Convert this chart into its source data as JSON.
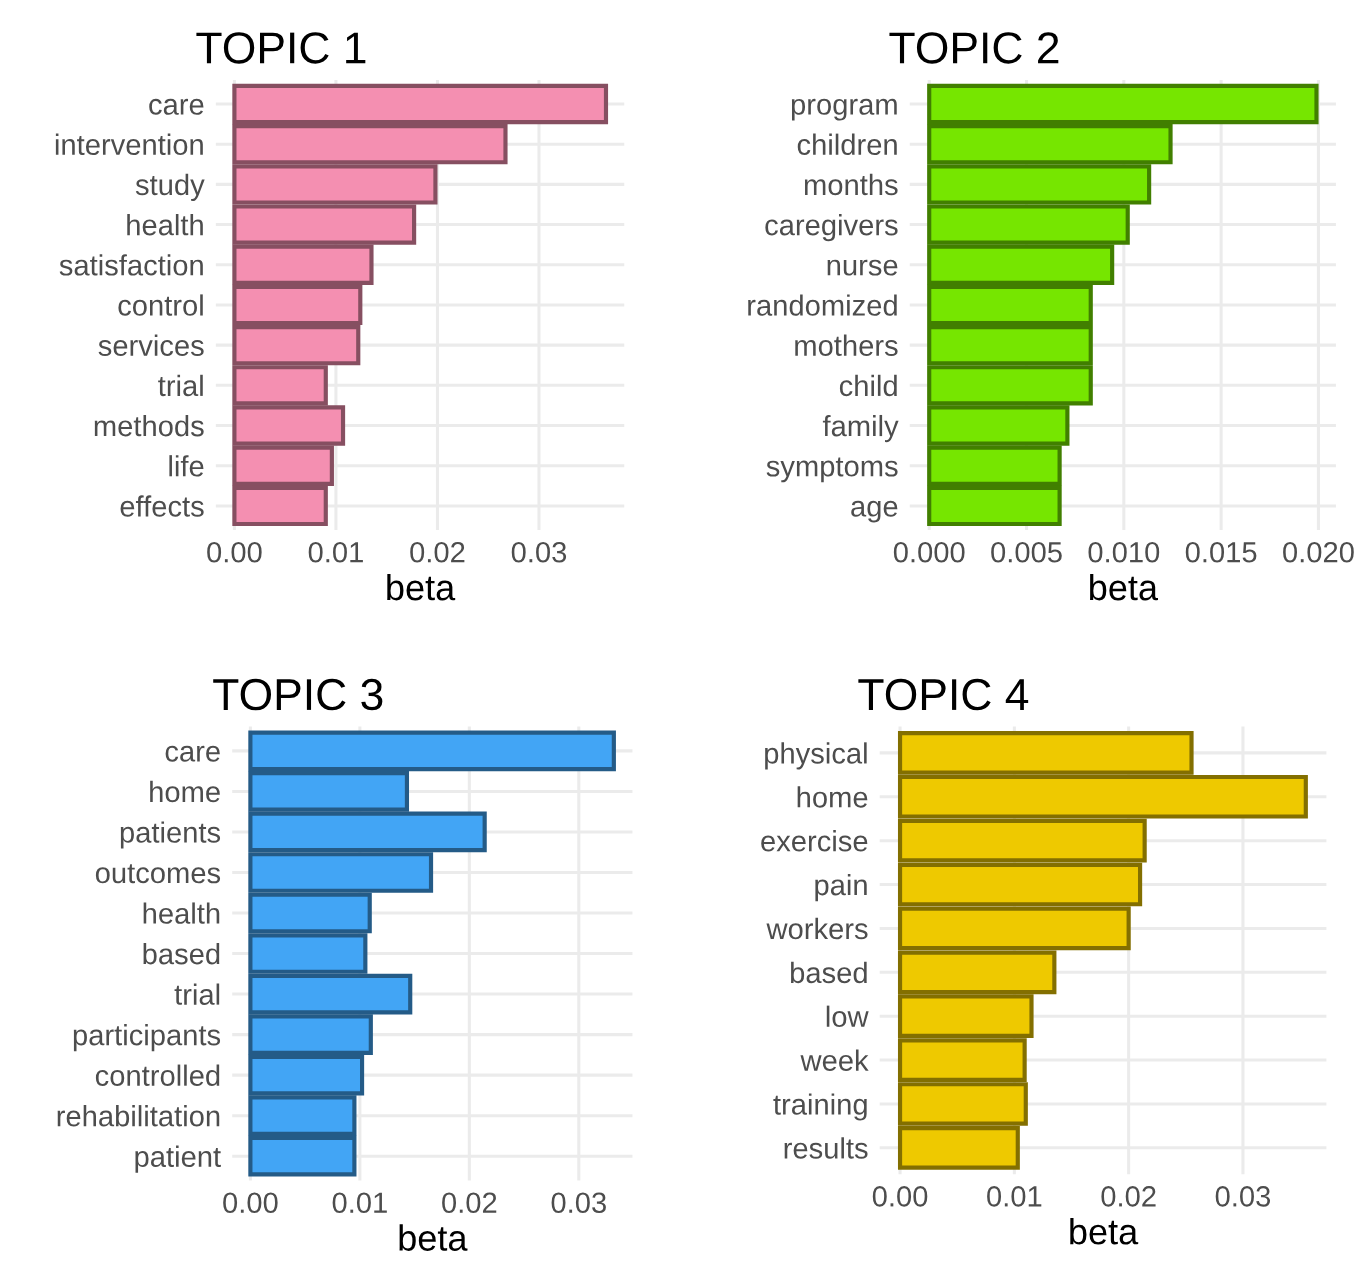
{
  "chart_data": [
    {
      "type": "bar",
      "orientation": "horizontal",
      "title": "TOPIC 1",
      "xlabel": "beta",
      "categories": [
        "care",
        "intervention",
        "study",
        "health",
        "satisfaction",
        "control",
        "services",
        "trial",
        "methods",
        "life",
        "effects"
      ],
      "series": [
        {
          "color": "#f48fb1",
          "values": [
            0.0366,
            0.0267,
            0.0198,
            0.0177,
            0.0135,
            0.0124,
            0.0122,
            0.009,
            0.0107,
            0.0096,
            0.009
          ]
        }
      ],
      "xlim": [
        -0.00183,
        0.0384
      ],
      "xticks": [
        {
          "value": 0,
          "label": "0.00"
        },
        {
          "value": 0.01,
          "label": "0.01"
        },
        {
          "value": 0.02,
          "label": "0.02"
        },
        {
          "value": 0.03,
          "label": "0.03"
        }
      ],
      "grid": true,
      "legend": false
    },
    {
      "type": "bar",
      "orientation": "horizontal",
      "title": "TOPIC 2",
      "xlabel": "beta",
      "categories": [
        "program",
        "children",
        "months",
        "caregivers",
        "nurse",
        "randomized",
        "mothers",
        "child",
        "family",
        "symptoms",
        "age"
      ],
      "series": [
        {
          "color": "#76e600",
          "values": [
            0.0199,
            0.0124,
            0.0113,
            0.0102,
            0.0094,
            0.0083,
            0.0083,
            0.0083,
            0.0071,
            0.0067,
            0.0067
          ]
        }
      ],
      "xlim": [
        -0.001,
        0.0209
      ],
      "xticks": [
        {
          "value": 0,
          "label": "0.000"
        },
        {
          "value": 0.005,
          "label": "0.005"
        },
        {
          "value": 0.01,
          "label": "0.010"
        },
        {
          "value": 0.015,
          "label": "0.015"
        },
        {
          "value": 0.02,
          "label": "0.020"
        }
      ],
      "grid": true,
      "legend": false
    },
    {
      "type": "bar",
      "orientation": "horizontal",
      "title": "TOPIC 3",
      "xlabel": "beta",
      "categories": [
        "care",
        "home",
        "patients",
        "outcomes",
        "health",
        "based",
        "trial",
        "participants",
        "controlled",
        "rehabilitation",
        "patient"
      ],
      "series": [
        {
          "color": "#42a5f5",
          "values": [
            0.0332,
            0.0143,
            0.0214,
            0.0165,
            0.0109,
            0.0105,
            0.0146,
            0.011,
            0.0102,
            0.0095,
            0.0095
          ]
        }
      ],
      "xlim": [
        -0.00166,
        0.0349
      ],
      "xticks": [
        {
          "value": 0,
          "label": "0.00"
        },
        {
          "value": 0.01,
          "label": "0.01"
        },
        {
          "value": 0.02,
          "label": "0.02"
        },
        {
          "value": 0.03,
          "label": "0.03"
        }
      ],
      "grid": true,
      "legend": false
    },
    {
      "type": "bar",
      "orientation": "horizontal",
      "title": "TOPIC 4",
      "xlabel": "beta",
      "categories": [
        "physical",
        "home",
        "exercise",
        "pain",
        "workers",
        "based",
        "low",
        "week",
        "training",
        "results"
      ],
      "series": [
        {
          "color": "#eec900",
          "values": [
            0.0255,
            0.0355,
            0.0214,
            0.021,
            0.02,
            0.0135,
            0.0115,
            0.0109,
            0.011,
            0.0103
          ]
        }
      ],
      "xlim": [
        -0.00178,
        0.0373
      ],
      "xticks": [
        {
          "value": 0,
          "label": "0.00"
        },
        {
          "value": 0.01,
          "label": "0.01"
        },
        {
          "value": 0.02,
          "label": "0.02"
        },
        {
          "value": 0.03,
          "label": "0.03"
        }
      ],
      "grid": true,
      "legend": false
    }
  ]
}
